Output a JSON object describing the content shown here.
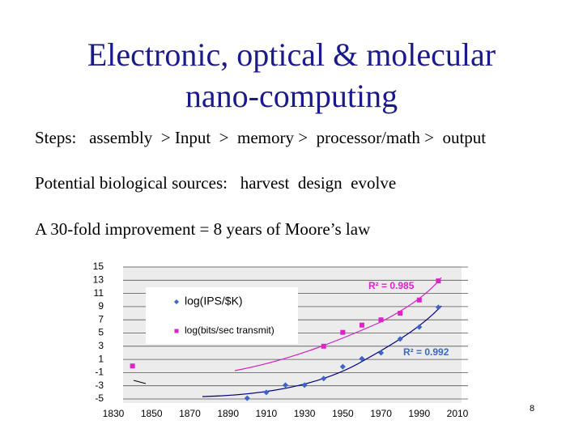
{
  "slide": {
    "title_lines": [
      "Electronic, optical & molecular",
      "nano-computing"
    ],
    "bullets": [
      "Steps:   assembly  > Input  >  memory >  processor/math >  output",
      "Potential biological sources:   harvest  design  evolve",
      "A 30-fold improvement = 8 years of Moore’s law"
    ],
    "page_number": "8"
  },
  "chart_data": {
    "type": "scatter",
    "xlim": [
      1830,
      2010
    ],
    "xticks": [
      1830,
      1850,
      1870,
      1890,
      1910,
      1930,
      1950,
      1970,
      1990,
      2010
    ],
    "ylim": [
      -5,
      15
    ],
    "yticks": [
      15,
      13,
      11,
      9,
      7,
      5,
      3,
      1,
      -1,
      -3,
      -5
    ],
    "grid": true,
    "series": [
      {
        "name": "log(IPS/$K)",
        "color": "#3a64c8",
        "marker": "diamond",
        "x": [
          1900,
          1910,
          1920,
          1930,
          1940,
          1950,
          1960,
          1970,
          1980,
          1990,
          2000
        ],
        "values": [
          -4.9,
          -4.0,
          -2.9,
          -2.9,
          -1.9,
          -0.1,
          1.1,
          2.0,
          4.1,
          5.9,
          8.9
        ]
      },
      {
        "name": "log(bits/sec transmit)",
        "color": "#e020c8",
        "marker": "square",
        "x": [
          1840,
          1940,
          1950,
          1960,
          1970,
          1980,
          1990,
          2000
        ],
        "values": [
          0.0,
          3.0,
          5.1,
          6.2,
          7.0,
          8.0,
          10.0,
          12.9
        ]
      }
    ],
    "annotations": [
      "R² = 0.985",
      "R² = 0.992"
    ]
  }
}
